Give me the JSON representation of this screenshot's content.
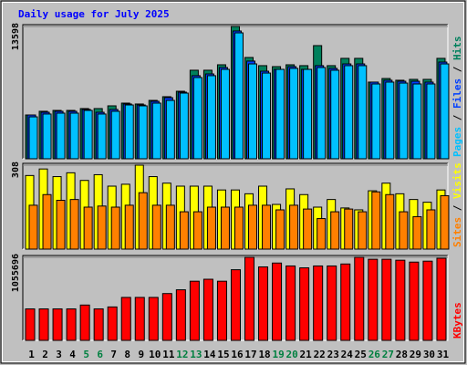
{
  "chart_data": [
    {
      "type": "bar",
      "title": "Daily usage for July 2025",
      "categories": [
        "1",
        "2",
        "3",
        "4",
        "5",
        "6",
        "7",
        "8",
        "9",
        "10",
        "11",
        "12",
        "13",
        "14",
        "15",
        "16",
        "17",
        "18",
        "19",
        "20",
        "21",
        "22",
        "23",
        "24",
        "25",
        "26",
        "27",
        "28",
        "29",
        "30",
        "31"
      ],
      "weekend": [
        "5",
        "6",
        "12",
        "13",
        "19",
        "20",
        "26",
        "27"
      ],
      "weekend_color": "#008040",
      "category_color": "#000000",
      "separator": "/",
      "ylim": [
        0,
        13598
      ],
      "yticks": [
        13598
      ],
      "series": [
        {
          "name": "Hits",
          "color": "#00805c",
          "values": [
            4500,
            4880,
            4970,
            4970,
            5160,
            5160,
            5440,
            5720,
            5630,
            6000,
            6380,
            6940,
            9100,
            9100,
            9660,
            13598,
            10410,
            9570,
            9470,
            9660,
            9570,
            11630,
            9570,
            10320,
            10320,
            7880,
            8250,
            8070,
            8160,
            8160,
            10320
          ]
        },
        {
          "name": "Files",
          "color": "#0040ff",
          "values": [
            4500,
            4780,
            4880,
            4880,
            5070,
            4780,
            5070,
            5630,
            5530,
            5910,
            6280,
            6850,
            8540,
            8720,
            9380,
            13130,
            10040,
            9000,
            9190,
            9470,
            9190,
            9570,
            9290,
            9750,
            9750,
            7880,
            8070,
            7970,
            7970,
            7880,
            9940
          ]
        },
        {
          "name": "Pages",
          "color": "#00c0ff",
          "values": [
            4310,
            4600,
            4690,
            4690,
            4970,
            4600,
            4880,
            5530,
            5440,
            5720,
            6000,
            6750,
            8350,
            8540,
            9190,
            12940,
            9750,
            8810,
            9190,
            9290,
            9190,
            9380,
            9100,
            9570,
            9570,
            7690,
            7880,
            7780,
            7690,
            7690,
            9750
          ]
        }
      ]
    },
    {
      "type": "bar",
      "separator": "/",
      "ylim": [
        0,
        308
      ],
      "yticks": [
        308
      ],
      "series": [
        {
          "name": "Visits",
          "color": "#ffff00",
          "values": [
            270,
            294,
            266,
            280,
            252,
            273,
            231,
            238,
            308,
            266,
            242,
            231,
            231,
            231,
            217,
            217,
            203,
            231,
            164,
            221,
            200,
            154,
            182,
            151,
            144,
            214,
            242,
            203,
            182,
            172,
            217
          ]
        },
        {
          "name": "Sites",
          "color": "#ff8000",
          "values": [
            161,
            200,
            179,
            182,
            154,
            158,
            154,
            161,
            207,
            161,
            161,
            137,
            137,
            154,
            154,
            154,
            161,
            161,
            144,
            161,
            147,
            112,
            137,
            147,
            137,
            210,
            200,
            137,
            119,
            144,
            196
          ]
        }
      ]
    },
    {
      "type": "bar",
      "ylim": [
        0,
        1055696
      ],
      "yticks": [
        1055696
      ],
      "series": [
        {
          "name": "KBytes",
          "color": "#ff0000",
          "values": [
            400000,
            400000,
            400000,
            400000,
            449000,
            400000,
            425000,
            546000,
            546000,
            546000,
            595000,
            643000,
            752000,
            777000,
            752000,
            898000,
            1055696,
            934000,
            983000,
            946000,
            922000,
            946000,
            946000,
            971000,
            1055696,
            1031000,
            1031000,
            1019000,
            995000,
            1007000,
            1044000
          ]
        }
      ]
    }
  ]
}
